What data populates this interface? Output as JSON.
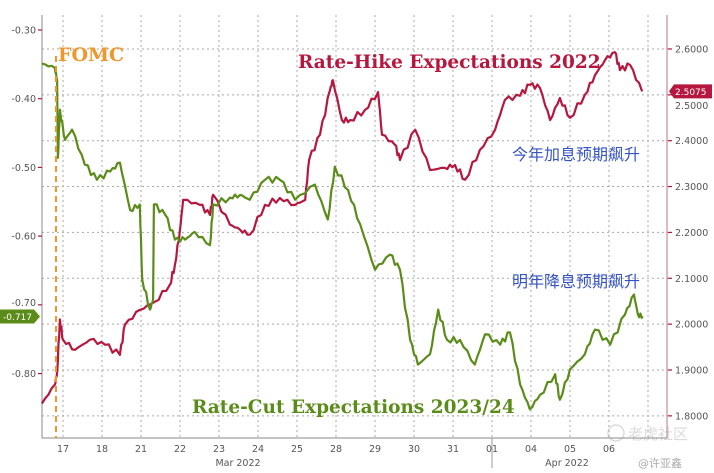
{
  "chart_data": {
    "type": "line",
    "title": "",
    "x_labels": [
      {
        "d": 1,
        "label": "17"
      },
      {
        "d": 2,
        "label": "18"
      },
      {
        "d": 3,
        "label": "21"
      },
      {
        "d": 4,
        "label": "22"
      },
      {
        "d": 5,
        "label": "23"
      },
      {
        "d": 6,
        "label": "24"
      },
      {
        "d": 7,
        "label": "25"
      },
      {
        "d": 8,
        "label": "28"
      },
      {
        "d": 9,
        "label": "29"
      },
      {
        "d": 10,
        "label": "30"
      },
      {
        "d": 11,
        "label": "31"
      },
      {
        "d": 12,
        "label": "01"
      },
      {
        "d": 13,
        "label": "04"
      },
      {
        "d": 14,
        "label": "05"
      },
      {
        "d": 15,
        "label": "06"
      }
    ],
    "month_labels": [
      {
        "d": 6,
        "label": "Mar 2022"
      },
      {
        "d": 14,
        "label": "Apr 2022"
      }
    ],
    "x_range_days": [
      0,
      16.5
    ],
    "left_axis": {
      "ticks": [
        "-0.30",
        "-0.40",
        "-0.50",
        "-0.60",
        "-0.70",
        "-0.80"
      ],
      "values": [
        -0.3,
        -0.4,
        -0.5,
        -0.6,
        -0.7,
        -0.8
      ],
      "range": [
        -0.8938,
        -0.2782
      ]
    },
    "right_axis": {
      "ticks": [
        "2.6000",
        "2.5000",
        "2.4000",
        "2.3000",
        "2.2000",
        "2.1000",
        "2.0000",
        "1.9000",
        "1.8000"
      ],
      "values": [
        2.6,
        2.5,
        2.4,
        2.3,
        2.2,
        2.1,
        2.0,
        1.9,
        1.8
      ],
      "range": [
        1.7517,
        2.6741
      ]
    },
    "grid": true,
    "series": [
      {
        "name": "Rate-Hike Expectations 2022",
        "axis": "right",
        "color": "#b5173f",
        "last_label": "2.5075",
        "points": [
          [
            0.46,
            1.827
          ],
          [
            0.79,
            1.868
          ],
          [
            0.85,
            1.894
          ],
          [
            0.92,
            2.01
          ],
          [
            1.0,
            1.966
          ],
          [
            1.31,
            1.944
          ],
          [
            1.69,
            1.966
          ],
          [
            2.08,
            1.955
          ],
          [
            2.46,
            1.933
          ],
          [
            2.59,
            1.999
          ],
          [
            2.97,
            2.031
          ],
          [
            3.36,
            2.049
          ],
          [
            3.74,
            2.086
          ],
          [
            3.87,
            2.129
          ],
          [
            4.0,
            2.206
          ],
          [
            4.08,
            2.271
          ],
          [
            4.51,
            2.26
          ],
          [
            4.77,
            2.238
          ],
          [
            4.85,
            2.282
          ],
          [
            5.28,
            2.217
          ],
          [
            5.54,
            2.206
          ],
          [
            5.79,
            2.195
          ],
          [
            6.18,
            2.26
          ],
          [
            6.56,
            2.275
          ],
          [
            6.95,
            2.26
          ],
          [
            7.21,
            2.271
          ],
          [
            7.31,
            2.358
          ],
          [
            7.59,
            2.413
          ],
          [
            7.85,
            2.511
          ],
          [
            7.92,
            2.532
          ],
          [
            8.15,
            2.445
          ],
          [
            8.36,
            2.445
          ],
          [
            8.74,
            2.467
          ],
          [
            9.08,
            2.506
          ],
          [
            9.18,
            2.413
          ],
          [
            9.51,
            2.391
          ],
          [
            9.64,
            2.358
          ],
          [
            10.03,
            2.424
          ],
          [
            10.41,
            2.336
          ],
          [
            10.79,
            2.341
          ],
          [
            11.05,
            2.347
          ],
          [
            11.31,
            2.315
          ],
          [
            11.69,
            2.38
          ],
          [
            12.08,
            2.424
          ],
          [
            12.33,
            2.489
          ],
          [
            12.72,
            2.498
          ],
          [
            12.97,
            2.522
          ],
          [
            13.23,
            2.515
          ],
          [
            13.49,
            2.445
          ],
          [
            13.74,
            2.493
          ],
          [
            14.0,
            2.45
          ],
          [
            14.38,
            2.5
          ],
          [
            14.64,
            2.543
          ],
          [
            14.9,
            2.576
          ],
          [
            15.15,
            2.593
          ],
          [
            15.28,
            2.554
          ],
          [
            15.54,
            2.565
          ],
          [
            15.85,
            2.5075
          ]
        ]
      },
      {
        "name": "Rate-Cut Expectations 2023/24",
        "axis": "left",
        "color": "#5b8c1a",
        "last_label": "-0.717",
        "points": [
          [
            0.46,
            -0.349
          ],
          [
            0.79,
            -0.355
          ],
          [
            0.85,
            -0.373
          ],
          [
            0.87,
            -0.486
          ],
          [
            0.92,
            -0.416
          ],
          [
            1.05,
            -0.46
          ],
          [
            1.23,
            -0.445
          ],
          [
            1.56,
            -0.496
          ],
          [
            1.87,
            -0.518
          ],
          [
            2.21,
            -0.506
          ],
          [
            2.46,
            -0.493
          ],
          [
            2.72,
            -0.562
          ],
          [
            2.97,
            -0.554
          ],
          [
            3.03,
            -0.663
          ],
          [
            3.23,
            -0.707
          ],
          [
            3.31,
            -0.692
          ],
          [
            3.33,
            -0.554
          ],
          [
            3.62,
            -0.569
          ],
          [
            3.87,
            -0.605
          ],
          [
            4.13,
            -0.605
          ],
          [
            4.38,
            -0.594
          ],
          [
            4.77,
            -0.613
          ],
          [
            4.85,
            -0.554
          ],
          [
            5.28,
            -0.544
          ],
          [
            5.54,
            -0.54
          ],
          [
            5.79,
            -0.547
          ],
          [
            6.18,
            -0.518
          ],
          [
            6.56,
            -0.518
          ],
          [
            6.95,
            -0.547
          ],
          [
            7.46,
            -0.525
          ],
          [
            7.79,
            -0.576
          ],
          [
            7.97,
            -0.499
          ],
          [
            8.31,
            -0.533
          ],
          [
            8.62,
            -0.583
          ],
          [
            9.0,
            -0.649
          ],
          [
            9.38,
            -0.627
          ],
          [
            9.64,
            -0.649
          ],
          [
            9.9,
            -0.751
          ],
          [
            10.1,
            -0.787
          ],
          [
            10.41,
            -0.772
          ],
          [
            10.62,
            -0.707
          ],
          [
            10.85,
            -0.751
          ],
          [
            11.18,
            -0.751
          ],
          [
            11.56,
            -0.787
          ],
          [
            11.82,
            -0.743
          ],
          [
            12.21,
            -0.758
          ],
          [
            12.46,
            -0.74
          ],
          [
            12.72,
            -0.816
          ],
          [
            12.97,
            -0.852
          ],
          [
            13.23,
            -0.831
          ],
          [
            13.62,
            -0.801
          ],
          [
            13.74,
            -0.838
          ],
          [
            14.0,
            -0.794
          ],
          [
            14.38,
            -0.772
          ],
          [
            14.64,
            -0.736
          ],
          [
            15.03,
            -0.758
          ],
          [
            15.41,
            -0.714
          ],
          [
            15.64,
            -0.685
          ],
          [
            15.74,
            -0.714
          ],
          [
            15.87,
            -0.717
          ]
        ]
      }
    ],
    "annotations": {
      "fomc": {
        "label": "FOMC",
        "d": 0.82,
        "color": "#f0962a"
      },
      "hike_title": "Rate-Hike Expectations 2022",
      "cut_title": "Rate-Cut Expectations 2023/24",
      "hike_cn": "今年加息预期飙升",
      "cut_cn": "明年降息预期飙升",
      "cn_color": "#3553c4"
    }
  },
  "watermark": {
    "logo_text": "老虎社区",
    "author": "@许亚鑫"
  }
}
